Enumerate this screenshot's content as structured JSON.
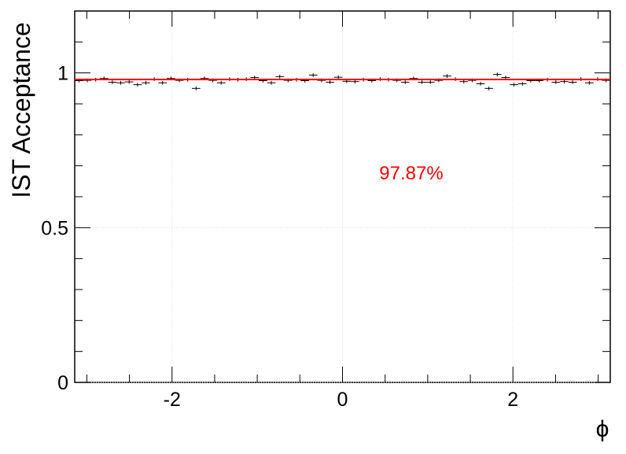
{
  "chart_data": {
    "type": "histogram",
    "ylabel": "IST Acceptance",
    "xlabel": "ϕ",
    "bins": [
      -3.142,
      -3.043,
      -2.945,
      -2.847,
      -2.749,
      -2.651,
      -2.553,
      -2.454,
      -2.356,
      -2.258,
      -2.16,
      -2.062,
      -1.963,
      -1.865,
      -1.767,
      -1.669,
      -1.571,
      -1.473,
      -1.374,
      -1.276,
      -1.178,
      -1.08,
      -0.982,
      -0.884,
      -0.785,
      -0.687,
      -0.589,
      -0.491,
      -0.393,
      -0.295,
      -0.196,
      -0.098,
      0,
      0.098,
      0.196,
      0.295,
      0.393,
      0.491,
      0.589,
      0.687,
      0.785,
      0.884,
      0.982,
      1.08,
      1.178,
      1.276,
      1.374,
      1.473,
      1.571,
      1.669,
      1.767,
      1.865,
      1.963,
      2.062,
      2.16,
      2.258,
      2.356,
      2.454,
      2.553,
      2.651,
      2.749,
      2.847,
      2.945,
      3.043,
      3.142
    ],
    "values": [
      0.975,
      0.976,
      0.978,
      0.982,
      0.97,
      0.968,
      0.971,
      0.962,
      0.968,
      0.98,
      0.968,
      0.982,
      0.976,
      0.978,
      0.95,
      0.982,
      0.976,
      0.968,
      0.98,
      0.978,
      0.98,
      0.985,
      0.975,
      0.968,
      0.988,
      0.976,
      0.978,
      0.975,
      0.993,
      0.976,
      0.97,
      0.986,
      0.973,
      0.972,
      0.978,
      0.975,
      0.98,
      0.978,
      0.976,
      0.97,
      0.982,
      0.97,
      0.97,
      0.976,
      0.99,
      0.98,
      0.972,
      0.976,
      0.965,
      0.95,
      0.995,
      0.985,
      0.962,
      0.965,
      0.975,
      0.975,
      0.978,
      0.97,
      0.972,
      0.97,
      0.98,
      0.968,
      0.98,
      0.976
    ],
    "errors": [
      0.006,
      0.006,
      0.006,
      0.006,
      0.006,
      0.006,
      0.006,
      0.006,
      0.006,
      0.006,
      0.006,
      0.006,
      0.006,
      0.006,
      0.006,
      0.006,
      0.006,
      0.006,
      0.006,
      0.006,
      0.006,
      0.006,
      0.006,
      0.006,
      0.006,
      0.006,
      0.006,
      0.006,
      0.006,
      0.006,
      0.006,
      0.006,
      0.006,
      0.006,
      0.006,
      0.006,
      0.006,
      0.006,
      0.006,
      0.006,
      0.006,
      0.006,
      0.006,
      0.006,
      0.006,
      0.006,
      0.006,
      0.006,
      0.006,
      0.006,
      0.006,
      0.006,
      0.006,
      0.006,
      0.006,
      0.006,
      0.006,
      0.006,
      0.006,
      0.006,
      0.006,
      0.006,
      0.006,
      0.006
    ],
    "color": "#000000",
    "fit": {
      "value": 0.9787,
      "color": "#ff0000"
    },
    "annotation": "97.87%",
    "xlim": [
      -3.142,
      3.142
    ],
    "ylim": [
      0,
      1.2
    ],
    "xticks": [
      -2,
      0,
      2
    ],
    "yticks": [
      0,
      0.5,
      1
    ],
    "xminorticks": [
      -3,
      -2.5,
      -1.5,
      -1,
      -0.5,
      0.5,
      1,
      1.5,
      2.5,
      3
    ],
    "yminorticks": [
      0.1,
      0.2,
      0.3,
      0.4,
      0.6,
      0.7,
      0.8,
      0.9,
      1.1
    ],
    "grid": true
  }
}
